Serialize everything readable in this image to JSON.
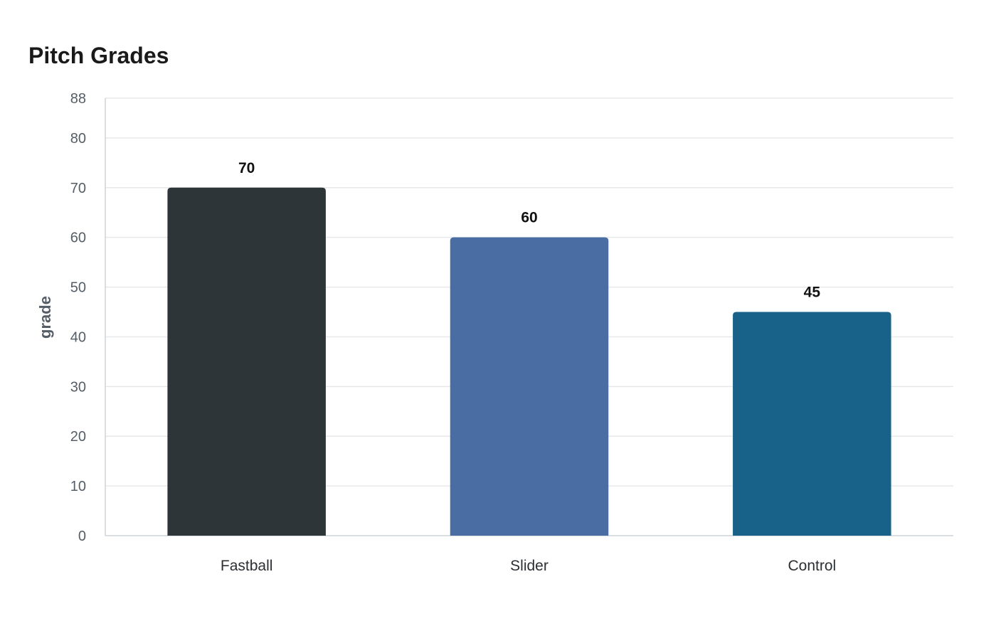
{
  "chart_data": {
    "type": "bar",
    "title": "Pitch Grades",
    "xlabel": "",
    "ylabel": "grade",
    "categories": [
      "Fastball",
      "Slider",
      "Control"
    ],
    "values": [
      70,
      60,
      45
    ],
    "value_labels": [
      "70",
      "60",
      "45"
    ],
    "colors": [
      "#2d3538",
      "#4a6ea3",
      "#186289"
    ],
    "ylim": [
      0,
      88
    ],
    "yticks": [
      0,
      10,
      20,
      30,
      40,
      50,
      60,
      70,
      80,
      88
    ],
    "grid": true,
    "legend": "none"
  }
}
